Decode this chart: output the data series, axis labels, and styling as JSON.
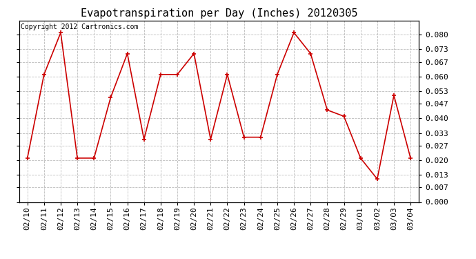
{
  "title": "Evapotranspiration per Day (Inches) 20120305",
  "copyright_text": "Copyright 2012 Cartronics.com",
  "dates": [
    "02/10",
    "02/11",
    "02/12",
    "02/13",
    "02/14",
    "02/15",
    "02/16",
    "02/17",
    "02/18",
    "02/19",
    "02/20",
    "02/21",
    "02/22",
    "02/23",
    "02/24",
    "02/25",
    "02/26",
    "02/27",
    "02/28",
    "02/29",
    "03/01",
    "03/02",
    "03/03",
    "03/04"
  ],
  "values": [
    0.021,
    0.061,
    0.081,
    0.021,
    0.021,
    0.05,
    0.071,
    0.03,
    0.061,
    0.061,
    0.071,
    0.03,
    0.061,
    0.031,
    0.031,
    0.061,
    0.081,
    0.071,
    0.044,
    0.041,
    0.021,
    0.011,
    0.051,
    0.021
  ],
  "line_color": "#cc0000",
  "marker": "+",
  "marker_size": 5,
  "marker_linewidth": 1.2,
  "line_width": 1.2,
  "ylim": [
    0.0,
    0.0867
  ],
  "yticks": [
    0.0,
    0.007,
    0.013,
    0.02,
    0.027,
    0.033,
    0.04,
    0.047,
    0.053,
    0.06,
    0.067,
    0.073,
    0.08
  ],
  "grid_color": "#bbbbbb",
  "background_color": "#ffffff",
  "title_fontsize": 11,
  "copyright_fontsize": 7,
  "tick_fontsize": 8,
  "fig_width": 6.9,
  "fig_height": 3.75,
  "dpi": 100
}
